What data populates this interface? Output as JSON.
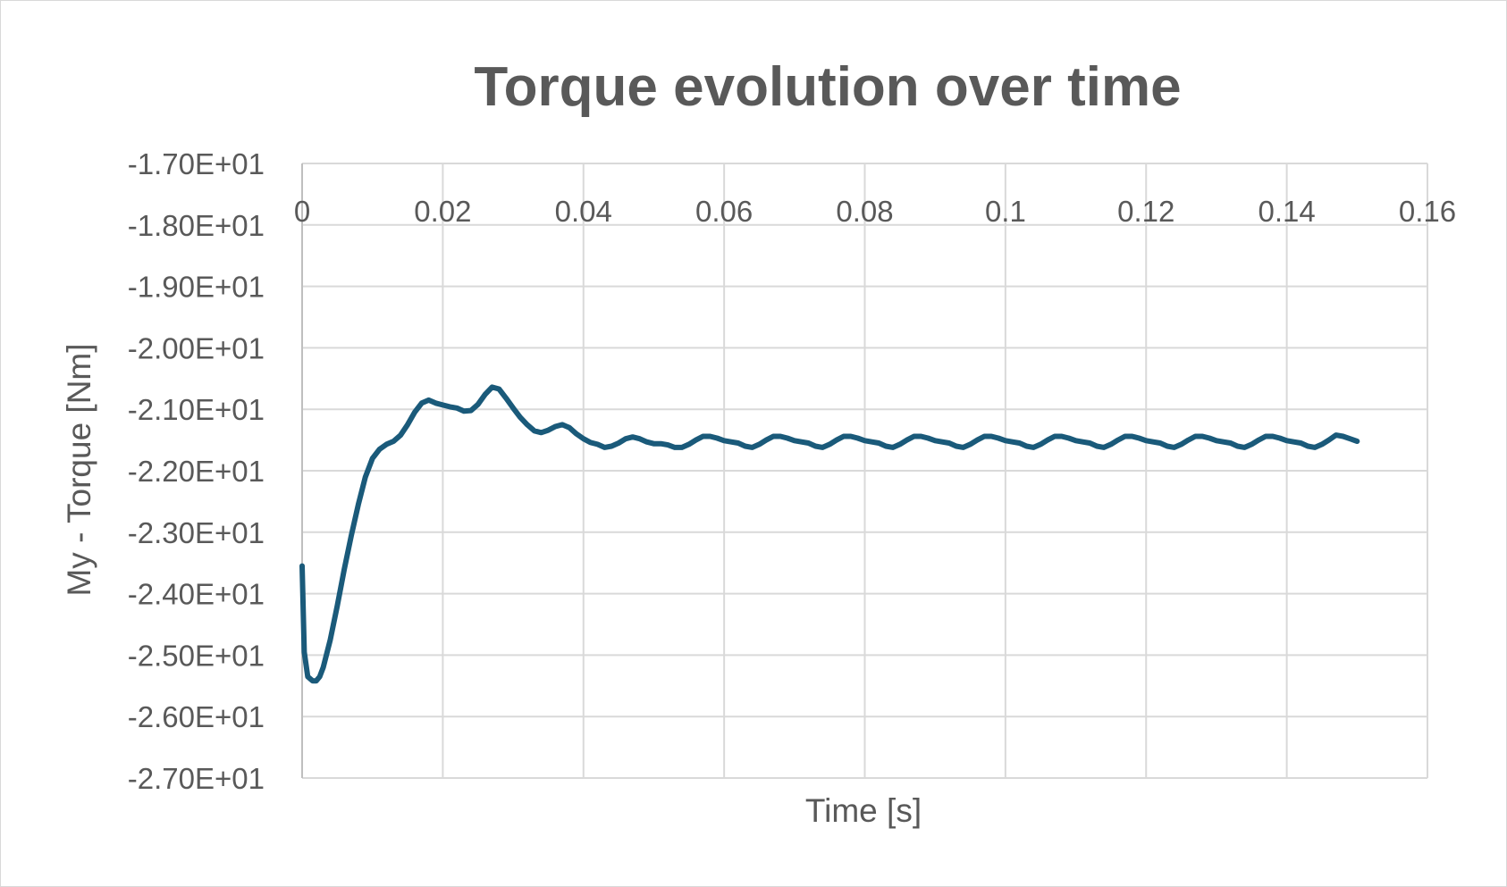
{
  "chart_data": {
    "type": "line",
    "title": "Torque evolution over time",
    "xlabel": "Time [s]",
    "ylabel": "My - Torque [Nm]",
    "xlim": [
      0,
      0.16
    ],
    "ylim": [
      -27,
      -17
    ],
    "x_ticks": [
      "0",
      "0.02",
      "0.04",
      "0.06",
      "0.08",
      "0.1",
      "0.12",
      "0.14",
      "0.16"
    ],
    "y_ticks": [
      "-1.70E+01",
      "-1.80E+01",
      "-1.90E+01",
      "-2.00E+01",
      "-2.10E+01",
      "-2.20E+01",
      "-2.30E+01",
      "-2.40E+01",
      "-2.50E+01",
      "-2.60E+01",
      "-2.70E+01"
    ],
    "grid": true,
    "legend": "none",
    "series": [
      {
        "color": "#1a5a7a",
        "x": [
          0,
          0.0003,
          0.0008,
          0.0015,
          0.002,
          0.0025,
          0.003,
          0.004,
          0.005,
          0.006,
          0.007,
          0.008,
          0.009,
          0.01,
          0.011,
          0.012,
          0.013,
          0.014,
          0.015,
          0.016,
          0.017,
          0.018,
          0.019,
          0.02,
          0.021,
          0.022,
          0.023,
          0.024,
          0.025,
          0.026,
          0.027,
          0.028,
          0.029,
          0.03,
          0.031,
          0.032,
          0.033,
          0.034,
          0.035,
          0.036,
          0.037,
          0.038,
          0.039,
          0.04,
          0.041,
          0.042,
          0.043,
          0.044,
          0.045,
          0.046,
          0.047,
          0.048,
          0.049,
          0.05,
          0.051,
          0.052,
          0.053,
          0.054,
          0.055,
          0.056,
          0.057,
          0.058,
          0.059,
          0.06,
          0.061,
          0.062,
          0.063,
          0.064,
          0.065,
          0.066,
          0.067,
          0.068,
          0.069,
          0.07,
          0.071,
          0.072,
          0.073,
          0.074,
          0.075,
          0.076,
          0.077,
          0.078,
          0.079,
          0.08,
          0.081,
          0.082,
          0.083,
          0.084,
          0.085,
          0.086,
          0.087,
          0.088,
          0.089,
          0.09,
          0.091,
          0.092,
          0.093,
          0.094,
          0.095,
          0.096,
          0.097,
          0.098,
          0.099,
          0.1,
          0.101,
          0.102,
          0.103,
          0.104,
          0.105,
          0.106,
          0.107,
          0.108,
          0.109,
          0.11,
          0.111,
          0.112,
          0.113,
          0.114,
          0.115,
          0.116,
          0.117,
          0.118,
          0.119,
          0.12,
          0.121,
          0.122,
          0.123,
          0.124,
          0.125,
          0.126,
          0.127,
          0.128,
          0.129,
          0.13,
          0.131,
          0.132,
          0.133,
          0.134,
          0.135,
          0.136,
          0.137,
          0.138,
          0.139,
          0.14,
          0.141,
          0.142,
          0.143,
          0.144,
          0.145,
          0.146,
          0.147,
          0.148,
          0.149,
          0.15
        ],
        "y": [
          -23.55,
          -24.95,
          -25.35,
          -25.42,
          -25.42,
          -25.35,
          -25.2,
          -24.75,
          -24.2,
          -23.6,
          -23.05,
          -22.55,
          -22.1,
          -21.8,
          -21.65,
          -21.57,
          -21.52,
          -21.42,
          -21.25,
          -21.05,
          -20.9,
          -20.85,
          -20.9,
          -20.93,
          -20.96,
          -20.98,
          -21.03,
          -21.02,
          -20.92,
          -20.76,
          -20.64,
          -20.67,
          -20.82,
          -20.98,
          -21.13,
          -21.25,
          -21.35,
          -21.38,
          -21.34,
          -21.28,
          -21.25,
          -21.3,
          -21.4,
          -21.48,
          -21.54,
          -21.57,
          -21.62,
          -21.6,
          -21.55,
          -21.48,
          -21.45,
          -21.48,
          -21.53,
          -21.56,
          -21.56,
          -21.58,
          -21.62,
          -21.62,
          -21.57,
          -21.5,
          -21.44,
          -21.44,
          -21.47,
          -21.51,
          -21.53,
          -21.55,
          -21.6,
          -21.62,
          -21.57,
          -21.5,
          -21.44,
          -21.44,
          -21.47,
          -21.51,
          -21.53,
          -21.55,
          -21.6,
          -21.62,
          -21.57,
          -21.5,
          -21.44,
          -21.44,
          -21.47,
          -21.51,
          -21.53,
          -21.55,
          -21.6,
          -21.62,
          -21.57,
          -21.5,
          -21.44,
          -21.44,
          -21.47,
          -21.51,
          -21.53,
          -21.55,
          -21.6,
          -21.62,
          -21.57,
          -21.5,
          -21.44,
          -21.44,
          -21.47,
          -21.51,
          -21.53,
          -21.55,
          -21.6,
          -21.62,
          -21.57,
          -21.5,
          -21.44,
          -21.44,
          -21.47,
          -21.51,
          -21.53,
          -21.55,
          -21.6,
          -21.62,
          -21.57,
          -21.5,
          -21.44,
          -21.44,
          -21.47,
          -21.51,
          -21.53,
          -21.55,
          -21.6,
          -21.62,
          -21.57,
          -21.5,
          -21.44,
          -21.44,
          -21.47,
          -21.51,
          -21.53,
          -21.55,
          -21.6,
          -21.62,
          -21.57,
          -21.5,
          -21.44,
          -21.44,
          -21.47,
          -21.51,
          -21.53,
          -21.55,
          -21.6,
          -21.62,
          -21.57,
          -21.5,
          -21.42,
          -21.44,
          -21.48,
          -21.52
        ]
      }
    ]
  }
}
